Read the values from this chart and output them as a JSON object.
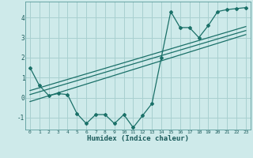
{
  "xlabel": "Humidex (Indice chaleur)",
  "background_color": "#ceeaea",
  "grid_color": "#a8d0d0",
  "line_color": "#1a7068",
  "xlim": [
    -0.5,
    23.5
  ],
  "ylim": [
    -1.6,
    4.8
  ],
  "yticks": [
    -1,
    0,
    1,
    2,
    3,
    4
  ],
  "xticks": [
    0,
    1,
    2,
    3,
    4,
    5,
    6,
    7,
    8,
    9,
    10,
    11,
    12,
    13,
    14,
    15,
    16,
    17,
    18,
    19,
    20,
    21,
    22,
    23
  ],
  "curve1_x": [
    0,
    1,
    2,
    3,
    4,
    5,
    6,
    7,
    8,
    9,
    10,
    11,
    12,
    13,
    14,
    15,
    16,
    17,
    18,
    19,
    20,
    21,
    22,
    23
  ],
  "curve1_y": [
    1.5,
    0.6,
    0.1,
    0.2,
    0.15,
    -0.8,
    -1.3,
    -0.85,
    -0.85,
    -1.3,
    -0.85,
    -1.5,
    -0.9,
    -0.3,
    2.0,
    4.3,
    3.5,
    3.5,
    3.0,
    3.6,
    4.3,
    4.4,
    4.45,
    4.5
  ],
  "line1_x": [
    0,
    23
  ],
  "line1_y": [
    -0.2,
    3.15
  ],
  "line2_x": [
    0,
    23
  ],
  "line2_y": [
    0.15,
    3.35
  ],
  "line3_x": [
    0,
    23
  ],
  "line3_y": [
    0.35,
    3.55
  ]
}
